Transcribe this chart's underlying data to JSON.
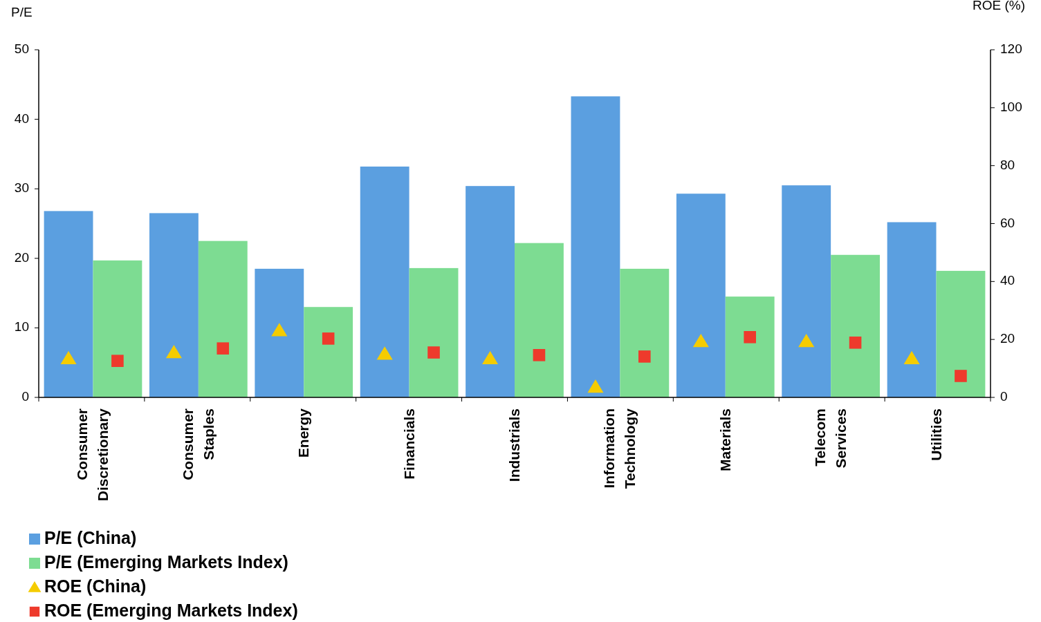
{
  "chart_data": {
    "type": "bar",
    "ylabel": "P/E",
    "y2label": "ROE (%)",
    "categories": [
      "Consumer Discretionary",
      "Consumer Staples",
      "Energy",
      "Financials",
      "Industrials",
      "Information Technology",
      "Materials",
      "Telecom Services",
      "Utilities"
    ],
    "series": [
      {
        "name": "P/E (China)",
        "color": "#5b9fe0",
        "values": [
          26.8,
          26.5,
          18.5,
          33.2,
          30.4,
          43.3,
          29.3,
          30.5,
          25.2
        ]
      },
      {
        "name": "P/E (Emerging Markets Index)",
        "color": "#7ddc92",
        "values": [
          19.7,
          22.5,
          13.0,
          18.6,
          22.2,
          18.5,
          14.5,
          20.5,
          18.2
        ]
      },
      {
        "name": "ROE (China)",
        "type": "scatter",
        "axis": "y2",
        "marker": "triangle",
        "color": "#f5cc00",
        "x": [
          "Consumer Discretionary",
          "Consumer Staples",
          "Energy",
          "Financials",
          "Industrials",
          "Information Technology",
          "Materials",
          "Telecom Services",
          "Utilities"
        ],
        "values": [
          13.4,
          15.5,
          23.1,
          15.0,
          13.4,
          3.6,
          19.3,
          19.3,
          13.4
        ]
      },
      {
        "name": "ROE (Emerging Markets Index)",
        "type": "scatter",
        "axis": "y2",
        "marker": "square",
        "color": "#ee3a2c",
        "x": [
          "Consumer Discretionary",
          "Consumer Staples",
          "Energy",
          "Financials",
          "Industrials",
          "Information Technology",
          "Materials",
          "Telecom Services",
          "Utilities"
        ],
        "values": [
          12.6,
          16.9,
          20.3,
          15.5,
          14.6,
          14.1,
          20.8,
          18.9,
          7.4
        ]
      }
    ],
    "ylim": [
      0,
      50
    ],
    "yticks": [
      0,
      10,
      20,
      30,
      40,
      50
    ],
    "y2lim": [
      0,
      120
    ],
    "y2ticks": [
      0,
      20,
      40,
      60,
      80,
      100,
      120
    ],
    "grid": false,
    "legend": "bottom left"
  }
}
